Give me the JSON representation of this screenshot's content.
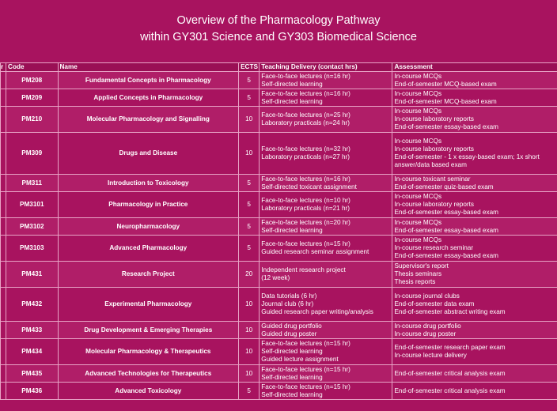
{
  "title": {
    "line1": "Overview of the Pharmacology Pathway",
    "line2": "within GY301 Science and GY303 Biomedical Science"
  },
  "headers": {
    "year": "r",
    "code": "Code",
    "name": "Name",
    "ects": "ECTS",
    "teaching": "Teaching Delivery (contact hrs)",
    "assessment": "Assessment"
  },
  "rows": [
    {
      "code": "PM208",
      "name": "Fundamental Concepts in Pharmacology",
      "ects": "5",
      "teaching": [
        "Face-to-face lectures (n=16 hr)",
        "Self-directed learning"
      ],
      "assessment": [
        "In-course MCQs",
        "End-of-semester MCQ-based exam"
      ]
    },
    {
      "code": "PM209",
      "name": "Applied Concepts in Pharmacology",
      "ects": "5",
      "teaching": [
        "Face-to-face lectures (n=16 hr)",
        "Self-directed learning"
      ],
      "assessment": [
        "In-course MCQs",
        "End-of-semester MCQ-based exam"
      ]
    },
    {
      "code": "PM210",
      "name": "Molecular Pharmacology and Signalling",
      "ects": "10",
      "teaching": [
        "Face-to-face lectures (n=25 hr)",
        "Laboratory practicals (n=24 hr)"
      ],
      "assessment": [
        "In-course MCQs",
        "In-course laboratory reports",
        "End-of-semester essay-based exam"
      ]
    },
    {
      "code": "PM309",
      "name": "Drugs and Disease",
      "ects": "10",
      "teaching": [
        "Face-to-face lectures (n=32 hr)",
        "Laboratory practicals (n=27 hr)"
      ],
      "assessment": [
        "In-course MCQs",
        "In-course laboratory reports",
        "End-of-semester - 1 x essay-based exam; 1x short",
        "answer/data based exam"
      ]
    },
    {
      "code": "PM311",
      "name": "Introduction to Toxicology",
      "ects": "5",
      "teaching": [
        "Face-to-face lectures (n=16 hr)",
        "Self-directed toxicant assignment"
      ],
      "assessment": [
        "In-course toxicant seminar",
        "End-of-semester quiz-based exam"
      ]
    },
    {
      "code": "PM3101",
      "name": "Pharmacology in Practice",
      "ects": "5",
      "teaching": [
        "Face-to-face lectures (n=10 hr)",
        "Laboratory practicals (n=21 hr)"
      ],
      "assessment": [
        "In-course MCQs",
        "In-course laboratory reports",
        "End-of-semester essay-based exam"
      ]
    },
    {
      "code": "PM3102",
      "name": "Neuropharmacology",
      "ects": "5",
      "teaching": [
        "Face-to-face lectures (n=20 hr)",
        "Self-directed learning"
      ],
      "assessment": [
        "In-course MCQs",
        "End-of-semester essay-based exam"
      ]
    },
    {
      "code": "PM3103",
      "name": "Advanced Pharmacology",
      "ects": "5",
      "teaching": [
        "Face-to-face lectures (n=15 hr)",
        "Guided research seminar assignment"
      ],
      "assessment": [
        "In-course MCQs",
        "In-course research seminar",
        "End-of-semester essay-based exam"
      ]
    },
    {
      "code": "PM431",
      "name": "Research Project",
      "ects": "20",
      "teaching": [
        "Independent research project",
        "(12 week)"
      ],
      "assessment": [
        "Supervisor's report",
        "Thesis seminars",
        "Thesis reports"
      ]
    },
    {
      "code": "PM432",
      "name": "Experimental Pharmacology",
      "ects": "10",
      "teaching": [
        "Data tutorials (6 hr)",
        "Journal club (6 hr)",
        "Guided research paper writing/analysis"
      ],
      "assessment": [
        "In-course journal clubs",
        "End-of-semester data exam",
        "End-of-semester abstract writing exam"
      ]
    },
    {
      "code": "PM433",
      "name": "Drug Development & Emerging Therapies",
      "ects": "10",
      "teaching": [
        "Guided drug portfolio",
        "Guided drug poster"
      ],
      "assessment": [
        "In-course drug portfolio",
        "In-course drug poster"
      ]
    },
    {
      "code": "PM434",
      "name": "Molecular Pharmacology & Therapeutics",
      "ects": "10",
      "teaching": [
        "Face-to-face lectures (n=15 hr)",
        "Self-directed learning",
        "Guided lecture assignment"
      ],
      "assessment": [
        "End-of-semester research paper exam",
        "In-course lecture delivery"
      ]
    },
    {
      "code": "PM435",
      "name": "Advanced Technologies for Therapeutics",
      "ects": "10",
      "teaching": [
        "Face-to-face lectures (n=15 hr)",
        "Self-directed learning"
      ],
      "assessment": [
        "End-of-semester critical analysis exam"
      ]
    },
    {
      "code": "PM436",
      "name": "Advanced Toxicology",
      "ects": "5",
      "teaching": [
        "Face-to-face lectures (n=15 hr)",
        "Self-directed learning"
      ],
      "assessment": [
        "End-of-semester critical analysis exam"
      ]
    }
  ]
}
